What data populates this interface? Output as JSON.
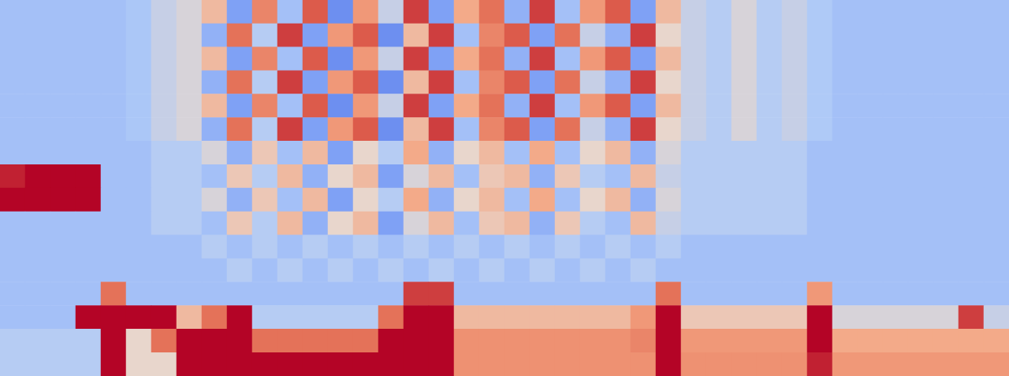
{
  "chart_data": {
    "type": "heatmap",
    "tick_labels": false,
    "color_range": [
      0,
      1
    ],
    "cells": [
      [
        0.3,
        0.3,
        0.3,
        0.3,
        0.3,
        0.32,
        0.4,
        0.45,
        0.6,
        0.2,
        0.75,
        0.3,
        0.85,
        0.15,
        0.7,
        0.4,
        0.9,
        0.2,
        0.65,
        0.8,
        0.25,
        0.9,
        0.3,
        0.7,
        0.85,
        0.2,
        0.6,
        0.4,
        0.35,
        0.45,
        0.35,
        0.4,
        0.33,
        0.3,
        0.3,
        0.3,
        0.3,
        0.3,
        0.3,
        0.3
      ],
      [
        0.3,
        0.3,
        0.3,
        0.3,
        0.3,
        0.32,
        0.4,
        0.45,
        0.25,
        0.8,
        0.35,
        0.9,
        0.2,
        0.7,
        0.85,
        0.15,
        0.6,
        0.9,
        0.3,
        0.75,
        0.85,
        0.2,
        0.8,
        0.4,
        0.25,
        0.9,
        0.5,
        0.4,
        0.35,
        0.45,
        0.35,
        0.4,
        0.33,
        0.3,
        0.3,
        0.3,
        0.3,
        0.3,
        0.3,
        0.3
      ],
      [
        0.3,
        0.3,
        0.3,
        0.3,
        0.3,
        0.32,
        0.4,
        0.45,
        0.6,
        0.2,
        0.75,
        0.3,
        0.85,
        0.15,
        0.7,
        0.4,
        0.9,
        0.2,
        0.65,
        0.8,
        0.25,
        0.9,
        0.3,
        0.7,
        0.85,
        0.2,
        0.6,
        0.4,
        0.35,
        0.45,
        0.35,
        0.4,
        0.33,
        0.3,
        0.3,
        0.3,
        0.3,
        0.3,
        0.3,
        0.3
      ],
      [
        0.3,
        0.3,
        0.3,
        0.3,
        0.3,
        0.32,
        0.4,
        0.45,
        0.25,
        0.8,
        0.35,
        0.9,
        0.2,
        0.7,
        0.85,
        0.15,
        0.6,
        0.9,
        0.3,
        0.75,
        0.85,
        0.2,
        0.8,
        0.4,
        0.25,
        0.9,
        0.5,
        0.4,
        0.35,
        0.45,
        0.35,
        0.4,
        0.33,
        0.3,
        0.3,
        0.3,
        0.3,
        0.3,
        0.3,
        0.3
      ],
      [
        0.3,
        0.3,
        0.3,
        0.3,
        0.3,
        0.32,
        0.4,
        0.45,
        0.6,
        0.2,
        0.75,
        0.3,
        0.85,
        0.15,
        0.7,
        0.4,
        0.9,
        0.2,
        0.65,
        0.8,
        0.25,
        0.9,
        0.3,
        0.7,
        0.85,
        0.2,
        0.6,
        0.4,
        0.35,
        0.45,
        0.35,
        0.4,
        0.33,
        0.3,
        0.3,
        0.3,
        0.3,
        0.3,
        0.3,
        0.3
      ],
      [
        0.3,
        0.3,
        0.3,
        0.3,
        0.3,
        0.32,
        0.4,
        0.45,
        0.25,
        0.8,
        0.35,
        0.9,
        0.2,
        0.7,
        0.85,
        0.15,
        0.6,
        0.9,
        0.3,
        0.75,
        0.85,
        0.2,
        0.8,
        0.4,
        0.25,
        0.9,
        0.5,
        0.4,
        0.35,
        0.45,
        0.35,
        0.4,
        0.33,
        0.3,
        0.3,
        0.3,
        0.3,
        0.3,
        0.3,
        0.3
      ],
      [
        0.3,
        0.3,
        0.3,
        0.3,
        0.3,
        0.3,
        0.35,
        0.35,
        0.45,
        0.25,
        0.55,
        0.3,
        0.6,
        0.2,
        0.5,
        0.35,
        0.65,
        0.25,
        0.5,
        0.6,
        0.3,
        0.65,
        0.3,
        0.5,
        0.6,
        0.25,
        0.45,
        0.35,
        0.35,
        0.35,
        0.35,
        0.35,
        0.3,
        0.3,
        0.3,
        0.3,
        0.3,
        0.3,
        0.3,
        0.3
      ],
      [
        0.95,
        1,
        1,
        1,
        0.3,
        0.3,
        0.35,
        0.35,
        0.3,
        0.55,
        0.35,
        0.6,
        0.25,
        0.5,
        0.6,
        0.2,
        0.45,
        0.6,
        0.3,
        0.55,
        0.6,
        0.25,
        0.55,
        0.35,
        0.3,
        0.6,
        0.4,
        0.35,
        0.35,
        0.35,
        0.35,
        0.35,
        0.3,
        0.3,
        0.3,
        0.3,
        0.3,
        0.3,
        0.3,
        0.3
      ],
      [
        1,
        1,
        1,
        1,
        0.3,
        0.3,
        0.35,
        0.35,
        0.45,
        0.25,
        0.55,
        0.3,
        0.6,
        0.2,
        0.5,
        0.35,
        0.65,
        0.25,
        0.5,
        0.6,
        0.3,
        0.65,
        0.3,
        0.5,
        0.6,
        0.25,
        0.45,
        0.35,
        0.35,
        0.35,
        0.35,
        0.35,
        0.3,
        0.3,
        0.3,
        0.3,
        0.3,
        0.3,
        0.3,
        0.3
      ],
      [
        0.3,
        0.3,
        0.3,
        0.3,
        0.3,
        0.3,
        0.35,
        0.35,
        0.3,
        0.55,
        0.35,
        0.6,
        0.25,
        0.5,
        0.6,
        0.2,
        0.45,
        0.6,
        0.3,
        0.55,
        0.6,
        0.25,
        0.55,
        0.35,
        0.3,
        0.6,
        0.4,
        0.35,
        0.35,
        0.35,
        0.35,
        0.35,
        0.3,
        0.3,
        0.3,
        0.3,
        0.3,
        0.3,
        0.3,
        0.3
      ],
      [
        0.3,
        0.3,
        0.3,
        0.3,
        0.3,
        0.3,
        0.3,
        0.3,
        0.35,
        0.3,
        0.35,
        0.3,
        0.35,
        0.3,
        0.35,
        0.3,
        0.35,
        0.3,
        0.35,
        0.3,
        0.35,
        0.3,
        0.35,
        0.3,
        0.35,
        0.3,
        0.35,
        0.3,
        0.3,
        0.3,
        0.3,
        0.3,
        0.3,
        0.3,
        0.3,
        0.3,
        0.3,
        0.3,
        0.3,
        0.3
      ],
      [
        0.3,
        0.3,
        0.3,
        0.3,
        0.3,
        0.3,
        0.3,
        0.3,
        0.3,
        0.35,
        0.3,
        0.35,
        0.3,
        0.35,
        0.3,
        0.35,
        0.3,
        0.35,
        0.3,
        0.35,
        0.3,
        0.35,
        0.3,
        0.35,
        0.3,
        0.35,
        0.3,
        0.3,
        0.3,
        0.3,
        0.3,
        0.3,
        0.3,
        0.3,
        0.3,
        0.3,
        0.3,
        0.3,
        0.3,
        0.3
      ],
      [
        0.3,
        0.3,
        0.3,
        0.3,
        0.8,
        0.3,
        0.3,
        0.3,
        0.3,
        0.3,
        0.3,
        0.3,
        0.3,
        0.3,
        0.3,
        0.3,
        0.9,
        0.9,
        0.3,
        0.3,
        0.3,
        0.3,
        0.3,
        0.3,
        0.3,
        0.3,
        0.8,
        0.3,
        0.3,
        0.3,
        0.3,
        0.3,
        0.7,
        0.3,
        0.3,
        0.3,
        0.3,
        0.3,
        0.3,
        0.3
      ],
      [
        0.3,
        0.3,
        0.3,
        1,
        1,
        1,
        1,
        0.6,
        0.8,
        1,
        0.35,
        0.35,
        0.35,
        0.35,
        0.35,
        0.8,
        1,
        1,
        0.6,
        0.6,
        0.6,
        0.6,
        0.6,
        0.6,
        0.6,
        0.7,
        1,
        0.55,
        0.55,
        0.55,
        0.55,
        0.55,
        1,
        0.45,
        0.45,
        0.45,
        0.45,
        0.45,
        0.9,
        0.4
      ],
      [
        0.35,
        0.35,
        0.35,
        0.35,
        1,
        0.5,
        0.8,
        1,
        1,
        1,
        0.8,
        0.8,
        0.8,
        0.8,
        0.8,
        1,
        1,
        1,
        0.72,
        0.72,
        0.72,
        0.72,
        0.72,
        0.72,
        0.72,
        0.75,
        1,
        0.7,
        0.7,
        0.7,
        0.7,
        0.7,
        1,
        0.65,
        0.65,
        0.65,
        0.65,
        0.65,
        0.65,
        0.65
      ],
      [
        0.35,
        0.35,
        0.35,
        0.35,
        1,
        0.5,
        0.5,
        1,
        1,
        1,
        1,
        1,
        1,
        1,
        1,
        1,
        1,
        1,
        0.72,
        0.72,
        0.72,
        0.72,
        0.72,
        0.72,
        0.72,
        0.72,
        1,
        0.72,
        0.72,
        0.72,
        0.72,
        0.72,
        0.95,
        0.7,
        0.7,
        0.7,
        0.7,
        0.7,
        0.7,
        0.7
      ]
    ]
  }
}
